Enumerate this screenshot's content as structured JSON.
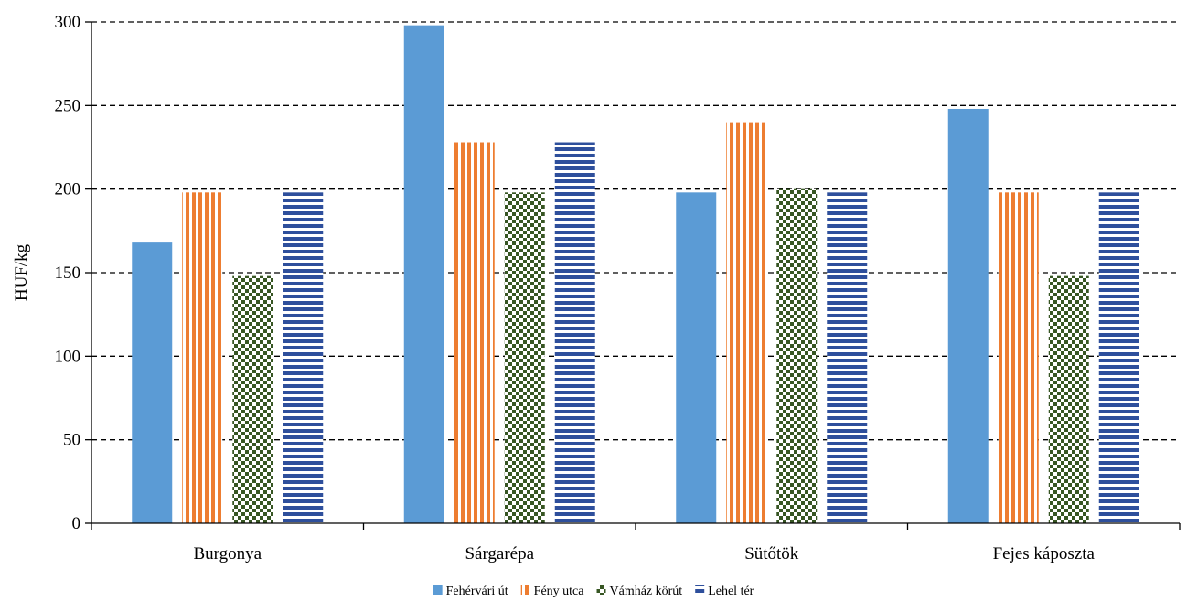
{
  "chart_data": {
    "type": "bar",
    "title": "",
    "xlabel": "",
    "ylabel": "HUF/kg",
    "ylim": [
      0,
      300
    ],
    "yticks": [
      0,
      50,
      100,
      150,
      200,
      250,
      300
    ],
    "grid": "horizontal dashed",
    "legend_position": "bottom",
    "categories": [
      "Burgonya",
      "Sárgarépa",
      "Sütőtök",
      "Fejes káposzta"
    ],
    "series": [
      {
        "name": "Fehérvári út",
        "values": [
          168,
          298,
          198,
          248
        ],
        "color": "#5b9bd5",
        "pattern": "solid"
      },
      {
        "name": "Fény utca",
        "values": [
          198,
          228,
          240,
          198
        ],
        "color": "#ed7d31",
        "pattern": "vertical-stripes"
      },
      {
        "name": "Vámház körút",
        "values": [
          148,
          198,
          200,
          148
        ],
        "color": "#375623",
        "pattern": "checkerboard"
      },
      {
        "name": "Lehel tér",
        "values": [
          198,
          228,
          198,
          198
        ],
        "color": "#2e4f9c",
        "pattern": "horizontal-stripes"
      }
    ]
  }
}
